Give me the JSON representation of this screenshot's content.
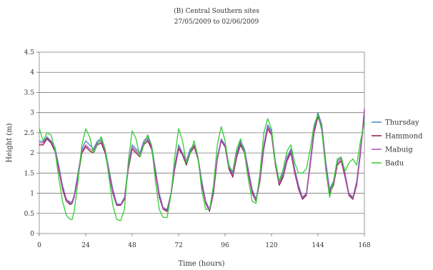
{
  "chart_data": {
    "type": "line",
    "title": "(B) Central Southern sites",
    "subtitle": "27/05/2009 to 02/06/2009",
    "xlabel": "Time (hours)",
    "ylabel": "Height (m)",
    "xlim": [
      0,
      168
    ],
    "ylim": [
      0,
      4.5
    ],
    "x_ticks": [
      "0",
      "24",
      "48",
      "72",
      "96",
      "120",
      "144",
      "168"
    ],
    "y_ticks": [
      "0",
      "0.5",
      "1",
      "1.5",
      "2",
      "2.5",
      "3",
      "3.5",
      "4",
      "4.5"
    ],
    "grid": "horizontal",
    "legend_position": "right",
    "x": [
      0,
      2,
      4,
      6,
      8,
      10,
      12,
      14,
      16,
      17,
      18,
      20,
      22,
      24,
      26,
      28,
      30,
      32,
      34,
      36,
      38,
      40,
      42,
      44,
      46,
      48,
      50,
      52,
      54,
      56,
      58,
      60,
      62,
      64,
      66,
      68,
      70,
      72,
      74,
      76,
      78,
      80,
      82,
      84,
      86,
      88,
      90,
      92,
      94,
      96,
      98,
      100,
      102,
      104,
      106,
      108,
      110,
      112,
      114,
      116,
      118,
      120,
      122,
      124,
      126,
      128,
      130,
      132,
      134,
      136,
      138,
      140,
      142,
      144,
      146,
      148,
      150,
      152,
      154,
      156,
      158,
      160,
      162,
      164,
      166,
      168
    ],
    "series": [
      {
        "name": "Thursday",
        "color": "#4a86c8",
        "values": [
          2.3,
          2.28,
          2.4,
          2.3,
          2.15,
          1.7,
          1.2,
          0.85,
          0.75,
          0.8,
          0.95,
          1.5,
          2.1,
          2.3,
          2.2,
          2.1,
          2.3,
          2.35,
          2.1,
          1.6,
          1.1,
          0.75,
          0.72,
          0.9,
          1.7,
          2.2,
          2.1,
          2.0,
          2.3,
          2.4,
          2.2,
          1.6,
          1.0,
          0.65,
          0.6,
          1.0,
          1.7,
          2.2,
          2.0,
          1.8,
          2.1,
          2.2,
          1.9,
          1.3,
          0.8,
          0.6,
          1.1,
          1.9,
          2.35,
          2.2,
          1.7,
          1.5,
          2.0,
          2.3,
          2.1,
          1.6,
          1.1,
          0.85,
          1.4,
          2.2,
          2.7,
          2.55,
          1.8,
          1.3,
          1.5,
          1.9,
          2.1,
          1.6,
          1.2,
          0.9,
          1.0,
          1.8,
          2.6,
          3.0,
          2.7,
          1.8,
          1.1,
          1.3,
          1.8,
          1.9,
          1.5,
          1.0,
          0.9,
          1.3,
          2.1,
          2.9
        ]
      },
      {
        "name": "Hammond",
        "color": "#8b1a4a",
        "values": [
          2.2,
          2.2,
          2.35,
          2.25,
          2.05,
          1.6,
          1.1,
          0.8,
          0.72,
          0.75,
          0.9,
          1.4,
          2.0,
          2.15,
          2.05,
          2.0,
          2.2,
          2.25,
          2.0,
          1.5,
          1.0,
          0.7,
          0.7,
          0.85,
          1.6,
          2.1,
          2.0,
          1.9,
          2.2,
          2.3,
          2.1,
          1.5,
          0.9,
          0.6,
          0.55,
          0.95,
          1.6,
          2.1,
          1.95,
          1.7,
          2.0,
          2.15,
          1.85,
          1.2,
          0.75,
          0.55,
          1.0,
          1.85,
          2.3,
          2.15,
          1.6,
          1.4,
          1.9,
          2.2,
          2.0,
          1.5,
          1.0,
          0.8,
          1.3,
          2.1,
          2.6,
          2.45,
          1.7,
          1.2,
          1.4,
          1.8,
          2.0,
          1.5,
          1.1,
          0.85,
          0.95,
          1.7,
          2.5,
          2.9,
          2.6,
          1.7,
          1.0,
          1.2,
          1.7,
          1.8,
          1.4,
          0.95,
          0.85,
          1.2,
          2.0,
          3.05
        ]
      },
      {
        "name": "Mabuig",
        "color": "#b050b0",
        "values": [
          2.25,
          2.25,
          2.38,
          2.28,
          2.1,
          1.65,
          1.15,
          0.85,
          0.78,
          0.78,
          0.92,
          1.45,
          2.05,
          2.2,
          2.1,
          2.05,
          2.25,
          2.3,
          2.05,
          1.55,
          1.05,
          0.72,
          0.72,
          0.88,
          1.65,
          2.15,
          2.05,
          1.95,
          2.25,
          2.35,
          2.15,
          1.55,
          0.95,
          0.62,
          0.58,
          0.98,
          1.65,
          2.15,
          1.98,
          1.75,
          2.05,
          2.2,
          1.88,
          1.25,
          0.78,
          0.58,
          1.05,
          1.88,
          2.32,
          2.18,
          1.65,
          1.45,
          1.95,
          2.25,
          2.05,
          1.55,
          1.05,
          0.82,
          1.35,
          2.15,
          2.65,
          2.5,
          1.75,
          1.25,
          1.45,
          1.85,
          2.05,
          1.55,
          1.15,
          0.88,
          0.98,
          1.75,
          2.55,
          2.95,
          2.65,
          1.75,
          1.05,
          1.25,
          1.75,
          1.85,
          1.45,
          0.98,
          0.88,
          1.25,
          2.05,
          3.1
        ]
      },
      {
        "name": "Badu",
        "color": "#33cc33",
        "values": [
          2.6,
          2.3,
          2.5,
          2.45,
          2.1,
          1.4,
          0.8,
          0.45,
          0.35,
          0.35,
          0.55,
          1.3,
          2.2,
          2.6,
          2.4,
          2.0,
          2.2,
          2.4,
          2.1,
          1.4,
          0.7,
          0.35,
          0.32,
          0.6,
          1.8,
          2.55,
          2.35,
          1.9,
          2.2,
          2.45,
          2.2,
          1.3,
          0.6,
          0.4,
          0.4,
          0.95,
          1.9,
          2.6,
          2.3,
          1.75,
          2.0,
          2.3,
          1.9,
          1.05,
          0.6,
          0.6,
          1.2,
          2.2,
          2.65,
          2.3,
          1.65,
          1.55,
          2.1,
          2.35,
          2.0,
          1.35,
          0.8,
          0.75,
          1.5,
          2.5,
          2.85,
          2.6,
          1.75,
          1.3,
          1.6,
          2.05,
          2.2,
          1.75,
          1.5,
          1.5,
          1.6,
          2.1,
          2.7,
          2.95,
          2.55,
          1.6,
          0.9,
          1.3,
          1.85,
          1.9,
          1.55,
          1.75,
          1.85,
          1.7,
          2.3,
          2.75
        ]
      }
    ]
  }
}
